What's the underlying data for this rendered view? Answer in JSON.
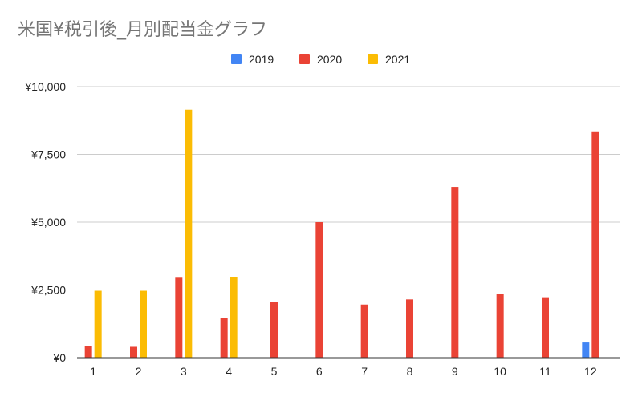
{
  "chart_data": {
    "type": "bar",
    "title": "米国¥税引後_月別配当金グラフ",
    "xlabel": "",
    "ylabel": "",
    "categories": [
      "1",
      "2",
      "3",
      "4",
      "5",
      "6",
      "7",
      "8",
      "9",
      "10",
      "11",
      "12"
    ],
    "series": [
      {
        "name": "2019",
        "color": "#4285f4",
        "values": [
          0,
          0,
          0,
          0,
          0,
          0,
          0,
          0,
          0,
          0,
          0,
          560
        ]
      },
      {
        "name": "2020",
        "color": "#ea4335",
        "values": [
          440,
          400,
          2950,
          1470,
          2070,
          5000,
          1960,
          2150,
          6300,
          2350,
          2230,
          8350
        ]
      },
      {
        "name": "2021",
        "color": "#fbbc04",
        "values": [
          2470,
          2470,
          9150,
          2980,
          0,
          0,
          0,
          0,
          0,
          0,
          0,
          0
        ]
      }
    ],
    "ylim": [
      0,
      10000
    ],
    "yticks": [
      0,
      2500,
      5000,
      7500,
      10000
    ],
    "ytick_labels": [
      "¥0",
      "¥2,500",
      "¥5,000",
      "¥7,500",
      "¥10,000"
    ],
    "grid": true,
    "legend_position": "top-center"
  }
}
